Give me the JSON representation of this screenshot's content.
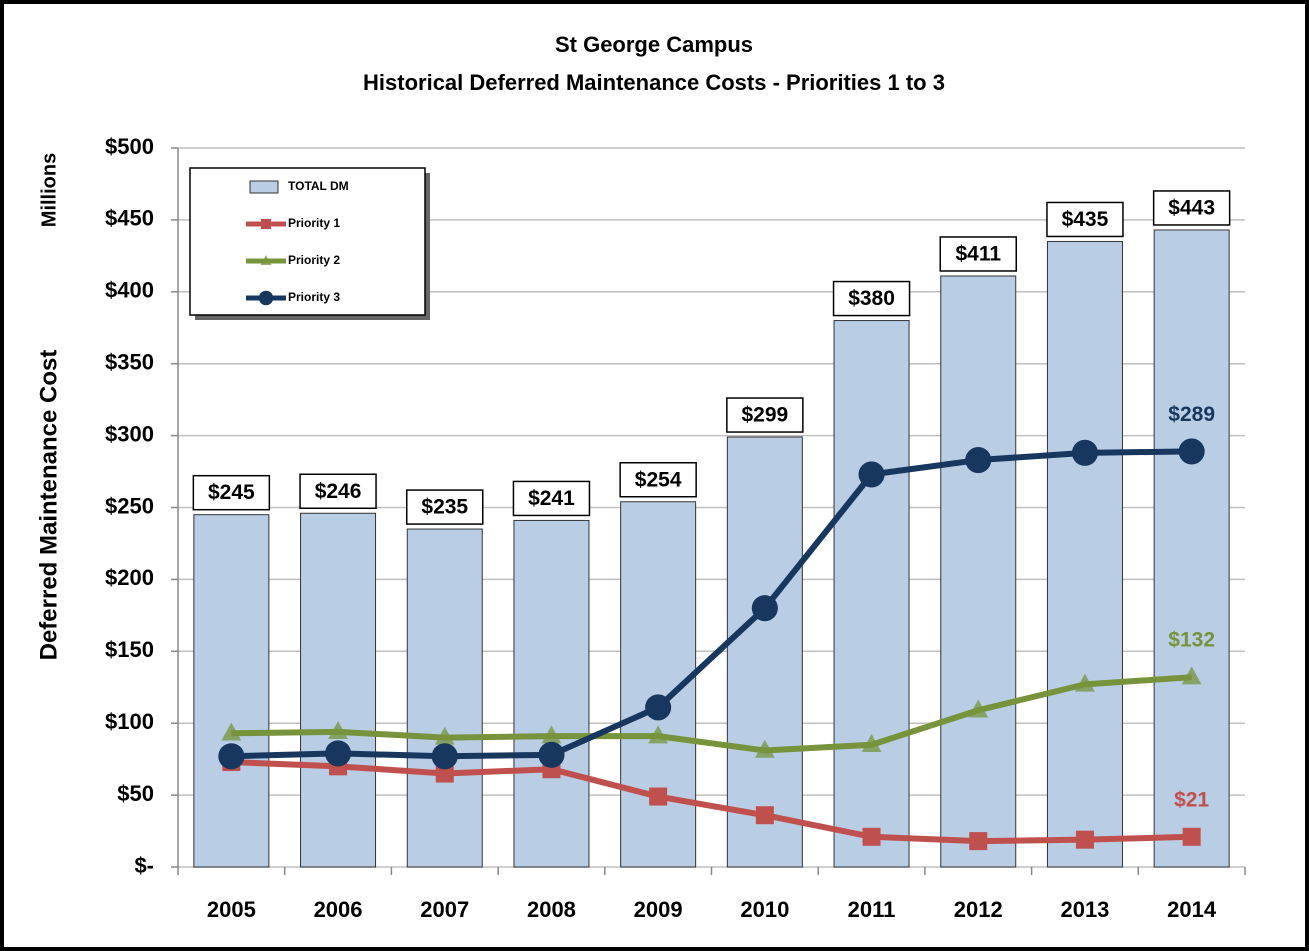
{
  "chart_data": {
    "type": "bar",
    "title": "St George Campus",
    "subtitle": "Historical Deferred Maintenance Costs - Priorities 1 to 3",
    "y_label": "Deferred Maintenance Cost",
    "y_unit": "Millions",
    "categories": [
      "2005",
      "2006",
      "2007",
      "2008",
      "2009",
      "2010",
      "2011",
      "2012",
      "2013",
      "2014"
    ],
    "series": [
      {
        "name": "TOTAL DM",
        "type": "bar",
        "color": "#b9cde5",
        "values": [
          245,
          246,
          235,
          241,
          254,
          299,
          380,
          411,
          435,
          443
        ],
        "value_labels": [
          "$245",
          "$246",
          "$235",
          "$241",
          "$254",
          "$299",
          "$380",
          "$411",
          "$435",
          "$443"
        ]
      },
      {
        "name": "Priority 1",
        "type": "line",
        "marker": "square",
        "color": "#c0504d",
        "values": [
          73,
          70,
          65,
          68,
          49,
          36,
          21,
          18,
          19,
          21
        ],
        "value_labels": [
          null,
          null,
          null,
          null,
          null,
          null,
          null,
          null,
          null,
          "$21"
        ]
      },
      {
        "name": "Priority 2",
        "type": "line",
        "marker": "triangle",
        "color": "#77933c",
        "values": [
          93,
          94,
          90,
          91,
          91,
          81,
          85,
          109,
          127,
          132
        ],
        "value_labels": [
          null,
          null,
          null,
          null,
          null,
          null,
          null,
          null,
          null,
          "$132"
        ]
      },
      {
        "name": "Priority 3",
        "type": "line",
        "marker": "circle",
        "color": "#17375e",
        "values": [
          77,
          79,
          77,
          78,
          111,
          180,
          273,
          283,
          288,
          289
        ],
        "value_labels": [
          null,
          null,
          null,
          null,
          null,
          null,
          null,
          null,
          null,
          "$289"
        ]
      }
    ],
    "ylim": [
      0,
      500
    ],
    "yticks": [
      {
        "value": 0,
        "label": "$-"
      },
      {
        "value": 50,
        "label": "$50"
      },
      {
        "value": 100,
        "label": "$100"
      },
      {
        "value": 150,
        "label": "$150"
      },
      {
        "value": 200,
        "label": "$200"
      },
      {
        "value": 250,
        "label": "$250"
      },
      {
        "value": 300,
        "label": "$300"
      },
      {
        "value": 350,
        "label": "$350"
      },
      {
        "value": 400,
        "label": "$400"
      },
      {
        "value": 450,
        "label": "$450"
      },
      {
        "value": 500,
        "label": "$500"
      }
    ],
    "grid": true,
    "legend": "top-left"
  }
}
